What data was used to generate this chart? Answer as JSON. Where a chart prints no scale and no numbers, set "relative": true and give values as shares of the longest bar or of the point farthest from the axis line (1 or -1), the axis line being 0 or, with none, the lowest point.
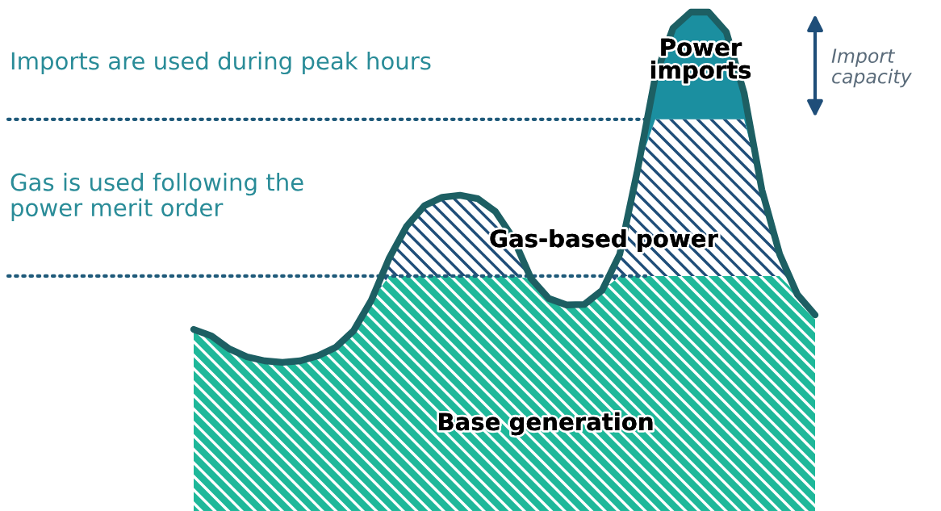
{
  "chart_data": {
    "type": "area",
    "relative": true,
    "stacked": true,
    "legend": false,
    "grid": false,
    "categories": [
      null,
      null,
      null,
      null,
      null,
      null,
      null,
      null,
      null,
      null,
      null,
      null,
      null,
      null,
      null,
      null,
      null,
      null,
      null,
      null,
      null,
      null,
      null,
      null,
      null,
      null,
      null,
      null,
      null,
      null,
      null,
      null,
      null,
      null,
      null,
      null
    ],
    "series": [
      {
        "name": "Base generation",
        "color": "#1fb89a",
        "values": [
          0.364,
          0.351,
          0.325,
          0.309,
          0.301,
          0.298,
          0.301,
          0.311,
          0.328,
          0.361,
          0.422,
          0.471,
          0.471,
          0.471,
          0.471,
          0.471,
          0.471,
          0.471,
          0.471,
          0.466,
          0.426,
          0.413,
          0.414,
          0.442,
          0.471,
          0.471,
          0.471,
          0.471,
          0.471,
          0.471,
          0.471,
          0.471,
          0.471,
          0.471,
          0.434,
          0.393
        ]
      },
      {
        "name": "Gas-based power",
        "color": "#1f4e79",
        "values": [
          0,
          0,
          0,
          0,
          0,
          0,
          0,
          0,
          0,
          0,
          0,
          0.035,
          0.1,
          0.141,
          0.158,
          0.162,
          0.155,
          0.129,
          0.076,
          0,
          0,
          0,
          0,
          0,
          0.044,
          0.213,
          0.314,
          0.314,
          0.314,
          0.314,
          0.314,
          0.314,
          0.173,
          0.044,
          0,
          0
        ]
      },
      {
        "name": "Power\nimports",
        "color": "#1b8fa0",
        "values": [
          0,
          0,
          0,
          0,
          0,
          0,
          0,
          0,
          0,
          0,
          0,
          0,
          0,
          0,
          0,
          0,
          0,
          0,
          0,
          0,
          0,
          0,
          0,
          0,
          0,
          0,
          0.086,
          0.183,
          0.215,
          0.215,
          0.175,
          0.053,
          0,
          0,
          0,
          0
        ]
      }
    ],
    "ref_lines": [
      {
        "axis": "y",
        "value": 0.471,
        "color": "#1f5a7a",
        "line_style": "dotted"
      },
      {
        "axis": "y",
        "value": 0.785,
        "color": "#1f5a7a",
        "line_style": "dotted"
      }
    ],
    "annotations": [
      "Imports are used during peak hours",
      "Gas is used following the\npower merit order",
      "Import\ncapacity"
    ]
  }
}
